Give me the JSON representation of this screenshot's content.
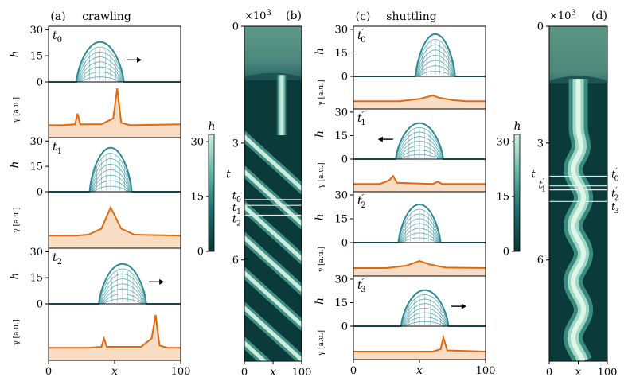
{
  "colors": {
    "droplet": "#2c8b95",
    "gamma": "#e0690e",
    "gamma_fill": "#f8dcc4",
    "dark": "#0a3a3a",
    "ridge": "#cdeee0",
    "axis": "#000000"
  },
  "chart_data": [
    {
      "type": "line",
      "panel_label": "(a)",
      "title": "crawling",
      "xlabel": "x",
      "xlim": [
        0,
        100
      ],
      "xticks": [
        "0",
        "50",
        "100"
      ],
      "rows": [
        {
          "time_label": "t",
          "time_sub": "0",
          "h_ylim": [
            0,
            32
          ],
          "h_ticks": [
            "0",
            "15",
            "30"
          ],
          "h_ylabel": "h",
          "gamma_ylabel": "γ [a.u.]",
          "droplet": {
            "center": 39,
            "halfwidth": 18,
            "height": 23
          },
          "arrow": "right",
          "gamma": [
            [
              0,
              0.2
            ],
            [
              10,
              0.2
            ],
            [
              20,
              0.22
            ],
            [
              22,
              0.45
            ],
            [
              24,
              0.22
            ],
            [
              40,
              0.22
            ],
            [
              49,
              0.35
            ],
            [
              52,
              1.0
            ],
            [
              55,
              0.25
            ],
            [
              62,
              0.2
            ],
            [
              100,
              0.22
            ]
          ]
        },
        {
          "time_label": "t",
          "time_sub": "1",
          "h_ylim": [
            0,
            32
          ],
          "h_ticks": [
            "0",
            "15",
            "30"
          ],
          "h_ylabel": "h",
          "gamma_ylabel": "γ [a.u.]",
          "droplet": {
            "center": 47,
            "halfwidth": 16,
            "height": 26
          },
          "arrow": "none",
          "gamma": [
            [
              0,
              0.2
            ],
            [
              20,
              0.2
            ],
            [
              30,
              0.22
            ],
            [
              40,
              0.35
            ],
            [
              47,
              0.8
            ],
            [
              55,
              0.35
            ],
            [
              65,
              0.22
            ],
            [
              100,
              0.2
            ]
          ]
        },
        {
          "time_label": "t",
          "time_sub": "2",
          "h_ylim": [
            0,
            32
          ],
          "h_ticks": [
            "0",
            "15",
            "30"
          ],
          "h_ylabel": "h",
          "gamma_ylabel": "γ [a.u.]",
          "droplet": {
            "center": 56,
            "halfwidth": 18,
            "height": 23
          },
          "arrow": "right",
          "gamma": [
            [
              0,
              0.2
            ],
            [
              30,
              0.2
            ],
            [
              40,
              0.22
            ],
            [
              42,
              0.4
            ],
            [
              44,
              0.22
            ],
            [
              70,
              0.22
            ],
            [
              78,
              0.4
            ],
            [
              81,
              0.9
            ],
            [
              84,
              0.25
            ],
            [
              90,
              0.2
            ],
            [
              100,
              0.2
            ]
          ]
        }
      ]
    },
    {
      "type": "heatmap",
      "panel_label": "(b)",
      "xlabel": "x",
      "ylabel": "t",
      "xlim": [
        0,
        100
      ],
      "xticks": [
        "0",
        "50",
        "100"
      ],
      "multiplier": "×10",
      "multiplier_exp": "3",
      "yticks": [
        "0",
        "3",
        "6"
      ],
      "colorbar": {
        "label": "h",
        "ticks": [
          "0",
          "15",
          "30"
        ]
      },
      "time_marks": [
        {
          "label": "t",
          "sub": "0"
        },
        {
          "label": "t",
          "sub": "1"
        },
        {
          "label": "t",
          "sub": "2"
        }
      ]
    },
    {
      "type": "line",
      "panel_label": "(c)",
      "title": "shuttling",
      "xlabel": "x",
      "xlim": [
        0,
        100
      ],
      "xticks": [
        "0",
        "50",
        "100"
      ],
      "rows": [
        {
          "time_label": "t",
          "time_sub": "0",
          "prime": "′",
          "h_ylim": [
            0,
            32
          ],
          "h_ticks": [
            "0",
            "15",
            "30"
          ],
          "h_ylabel": "h",
          "gamma_ylabel": "γ [a.u.]",
          "droplet": {
            "center": 62,
            "halfwidth": 15,
            "height": 27
          },
          "arrow": "none",
          "gamma": [
            [
              0,
              0.2
            ],
            [
              35,
              0.2
            ],
            [
              50,
              0.3
            ],
            [
              60,
              0.45
            ],
            [
              65,
              0.35
            ],
            [
              75,
              0.25
            ],
            [
              85,
              0.2
            ],
            [
              100,
              0.2
            ]
          ]
        },
        {
          "time_label": "t",
          "time_sub": "1",
          "prime": "′",
          "h_ylim": [
            0,
            32
          ],
          "h_ticks": [
            "0",
            "15",
            "30"
          ],
          "h_ylabel": "h",
          "gamma_ylabel": "γ [a.u.]",
          "droplet": {
            "center": 50,
            "halfwidth": 18,
            "height": 23
          },
          "arrow": "left",
          "gamma": [
            [
              0,
              0.2
            ],
            [
              20,
              0.2
            ],
            [
              27,
              0.35
            ],
            [
              30,
              0.55
            ],
            [
              33,
              0.25
            ],
            [
              60,
              0.2
            ],
            [
              64,
              0.3
            ],
            [
              67,
              0.2
            ],
            [
              100,
              0.2
            ]
          ]
        },
        {
          "time_label": "t",
          "time_sub": "2",
          "prime": "′",
          "h_ylim": [
            0,
            32
          ],
          "h_ticks": [
            "0",
            "15",
            "30"
          ],
          "h_ylabel": "h",
          "gamma_ylabel": "γ [a.u.]",
          "droplet": {
            "center": 50,
            "halfwidth": 16,
            "height": 24
          },
          "arrow": "none",
          "gamma": [
            [
              0,
              0.2
            ],
            [
              25,
              0.2
            ],
            [
              40,
              0.3
            ],
            [
              50,
              0.5
            ],
            [
              58,
              0.35
            ],
            [
              70,
              0.22
            ],
            [
              100,
              0.2
            ]
          ]
        },
        {
          "time_label": "t",
          "time_sub": "3",
          "prime": "′",
          "h_ylim": [
            0,
            32
          ],
          "h_ticks": [
            "0",
            "15",
            "30"
          ],
          "h_ylabel": "h",
          "gamma_ylabel": "γ [a.u.]",
          "droplet": {
            "center": 54,
            "halfwidth": 18,
            "height": 23
          },
          "arrow": "right",
          "gamma": [
            [
              0,
              0.2
            ],
            [
              60,
              0.2
            ],
            [
              66,
              0.3
            ],
            [
              68,
              0.8
            ],
            [
              71,
              0.25
            ],
            [
              100,
              0.2
            ]
          ]
        }
      ]
    },
    {
      "type": "heatmap",
      "panel_label": "(d)",
      "xlabel": "x",
      "ylabel": "t",
      "xlim": [
        0,
        100
      ],
      "xticks": [
        "0",
        "50",
        "100"
      ],
      "multiplier": "×10",
      "multiplier_exp": "3",
      "yticks": [
        "0",
        "3",
        "6"
      ],
      "colorbar": {
        "label": "h",
        "ticks": [
          "0",
          "15",
          "30"
        ]
      },
      "time_marks": [
        {
          "label": "t",
          "sub": "0",
          "prime": "′"
        },
        {
          "label": "t",
          "sub": "1",
          "prime": "′"
        },
        {
          "label": "t",
          "sub": "2",
          "prime": "′"
        },
        {
          "label": "t",
          "sub": "3",
          "prime": "′"
        }
      ]
    }
  ]
}
